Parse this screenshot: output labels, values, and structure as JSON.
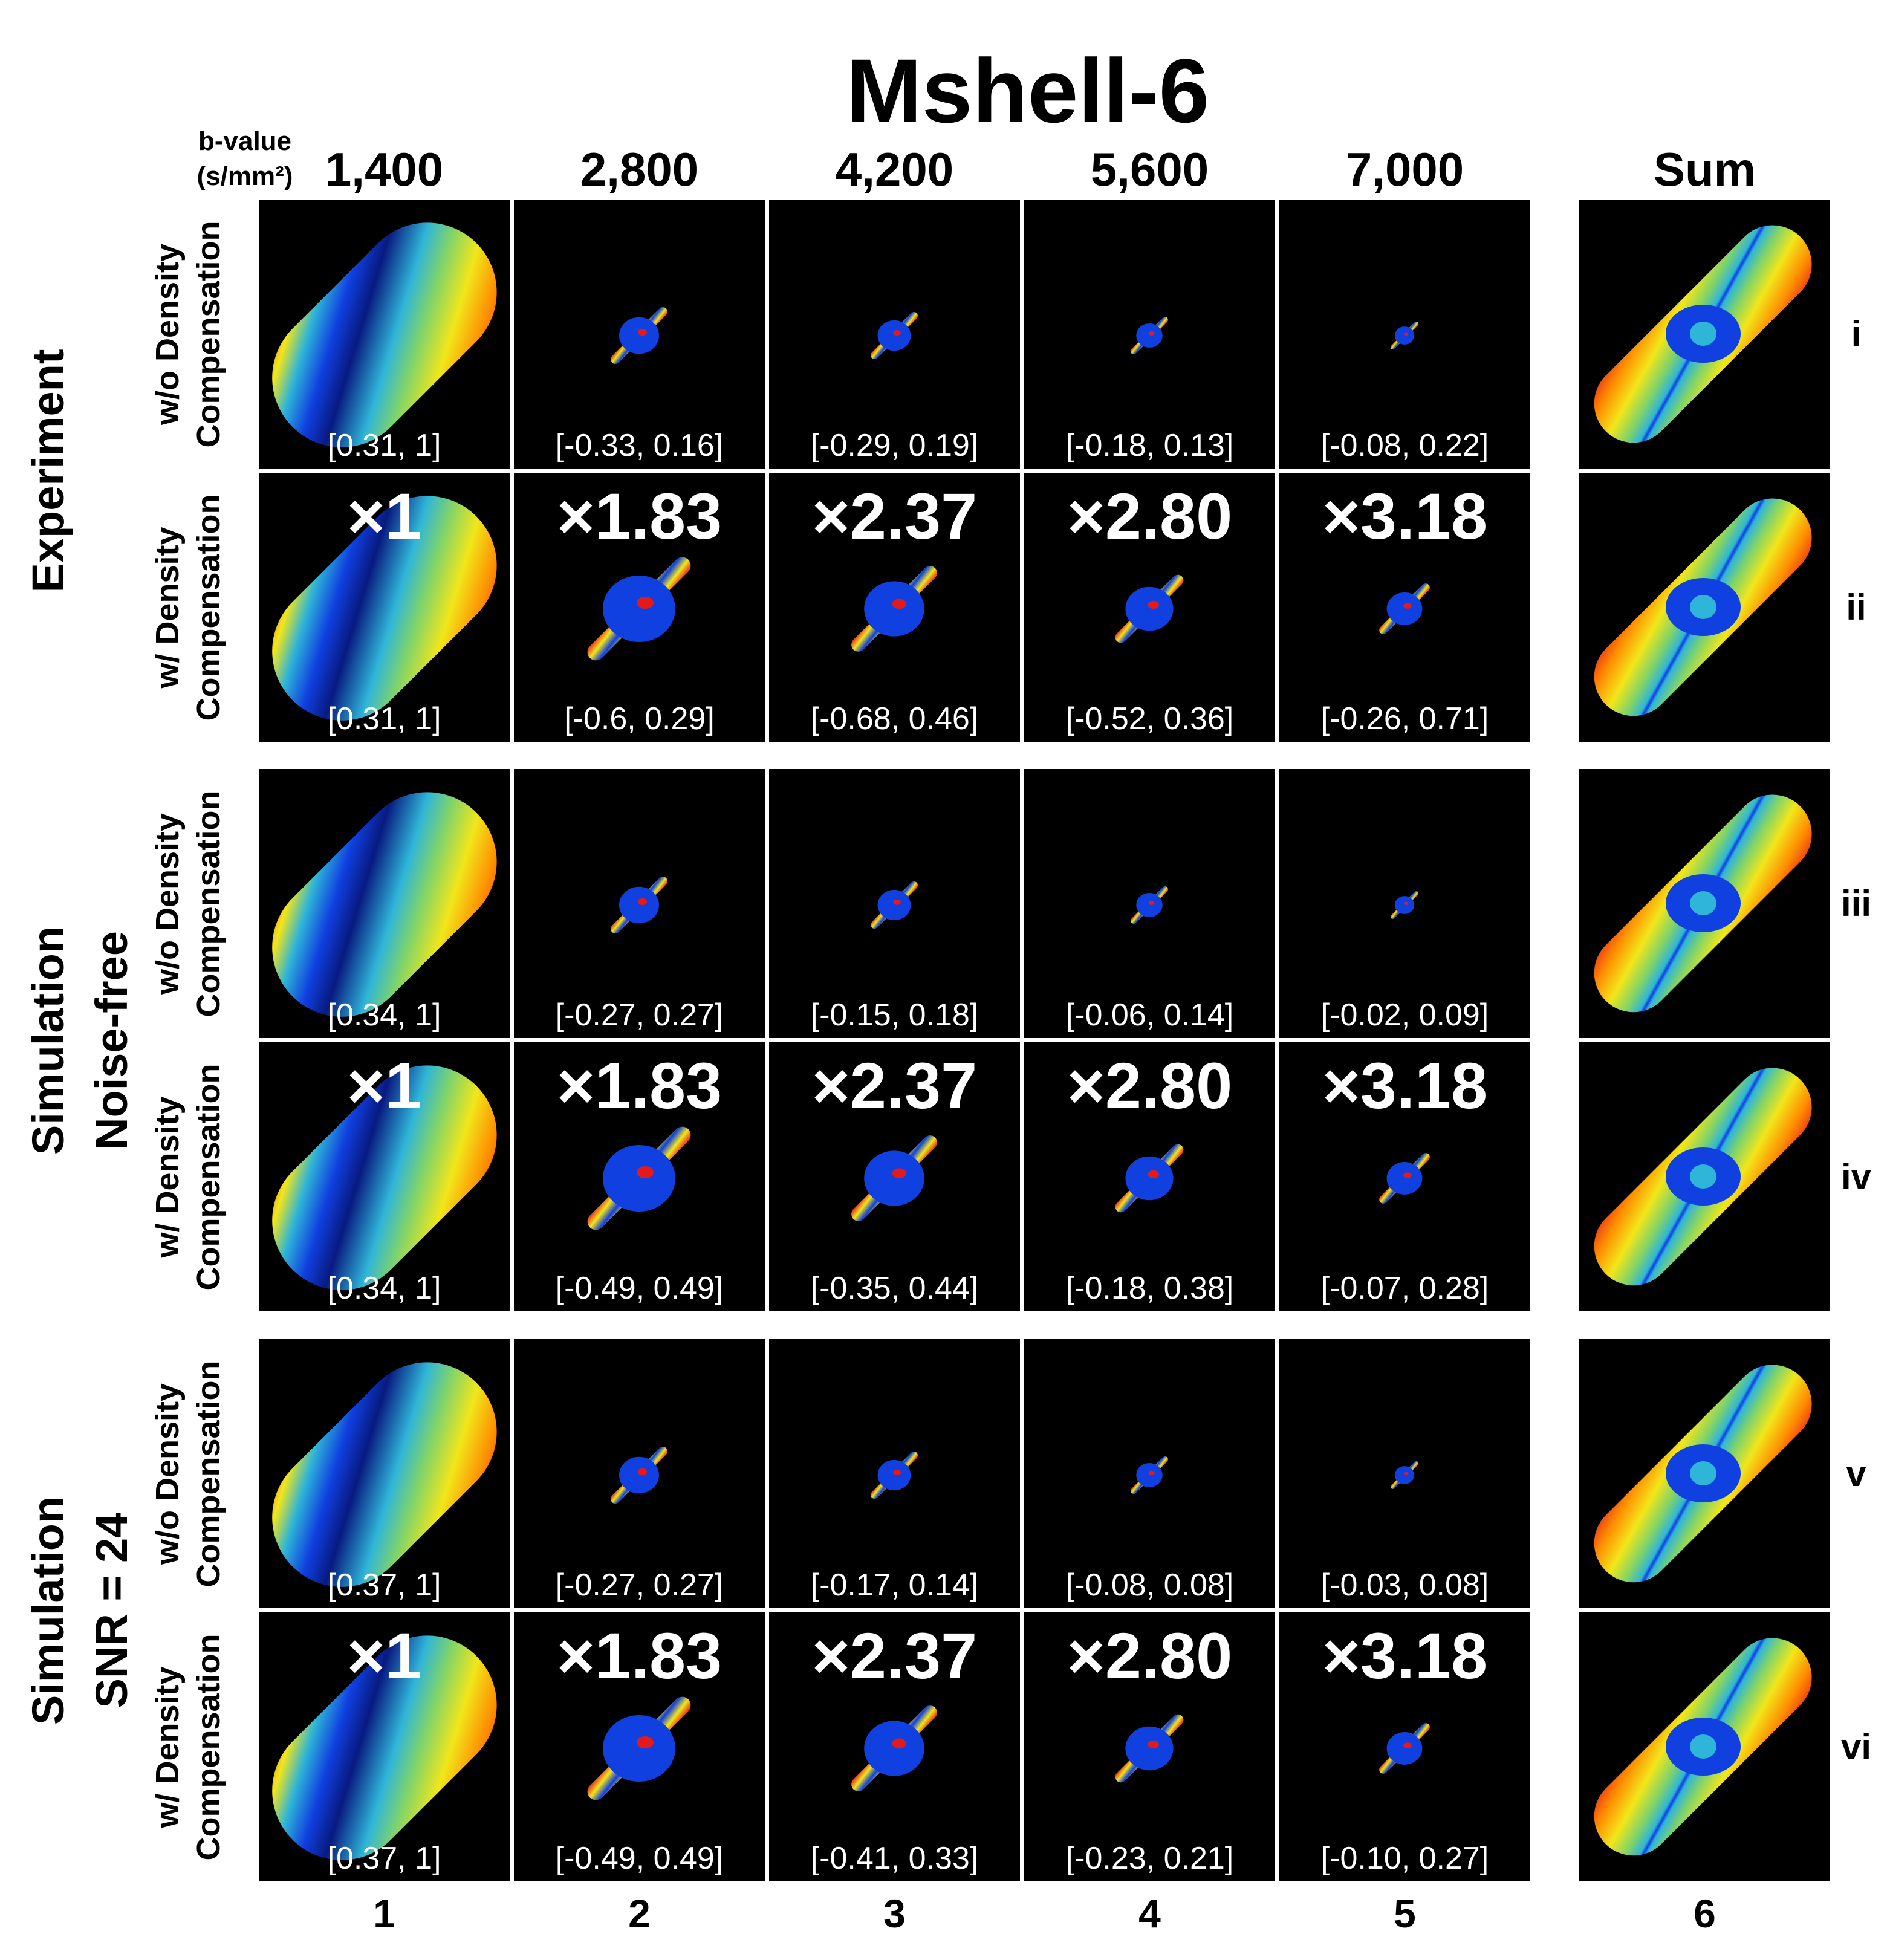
{
  "title": "Mshell-6",
  "bvalue_label_line1": "b-value",
  "bvalue_label_line2": "(s/mm²)",
  "columns": [
    "1,400",
    "2,800",
    "4,200",
    "5,600",
    "7,000",
    "Sum"
  ],
  "column_numbers": [
    "1",
    "2",
    "3",
    "4",
    "5",
    "6"
  ],
  "groups": [
    {
      "label_line1": "Experiment",
      "label_line2": ""
    },
    {
      "label_line1": "Simulation",
      "label_line2": "Noise-free"
    },
    {
      "label_line1": "Simulation",
      "label_line2": "SNR = 24"
    }
  ],
  "row_labels": {
    "without_line1": "w/o Density",
    "with_line1": "w/ Density",
    "line2": "Compensation"
  },
  "scale_factors": [
    "×1",
    "×1.83",
    "×2.37",
    "×2.80",
    "×3.18"
  ],
  "rows": [
    {
      "roman": "i",
      "ranges": [
        "[0.31, 1]",
        "[-0.33, 0.16]",
        "[-0.29, 0.19]",
        "[-0.18, 0.13]",
        "[-0.08, 0.22]"
      ],
      "scale": 0.55
    },
    {
      "roman": "ii",
      "ranges": [
        "[0.31, 1]",
        "[-0.6, 0.29]",
        "[-0.68, 0.46]",
        "[-0.52, 0.36]",
        "[-0.26, 0.71]"
      ],
      "scale": 1.0
    },
    {
      "roman": "iii",
      "ranges": [
        "[0.34, 1]",
        "[-0.27, 0.27]",
        "[-0.15, 0.18]",
        "[-0.06, 0.14]",
        "[-0.02, 0.09]"
      ],
      "scale": 0.55
    },
    {
      "roman": "iv",
      "ranges": [
        "[0.34, 1]",
        "[-0.49, 0.49]",
        "[-0.35, 0.44]",
        "[-0.18, 0.38]",
        "[-0.07, 0.28]"
      ],
      "scale": 1.0
    },
    {
      "roman": "v",
      "ranges": [
        "[0.37, 1]",
        "[-0.27, 0.27]",
        "[-0.17, 0.14]",
        "[-0.08, 0.08]",
        "[-0.03, 0.08]"
      ],
      "scale": 0.55
    },
    {
      "roman": "vi",
      "ranges": [
        "[0.37, 1]",
        "[-0.49, 0.49]",
        "[-0.41, 0.33]",
        "[-0.23, 0.21]",
        "[-0.10, 0.27]"
      ],
      "scale": 1.0
    }
  ],
  "colors": {
    "red": "#e31a1c",
    "orange": "#ff8c00",
    "yellow": "#f2e61a",
    "green": "#7fd36b",
    "cyan": "#2fb5d8",
    "blue": "#1040e0",
    "navy": "#081a80"
  }
}
